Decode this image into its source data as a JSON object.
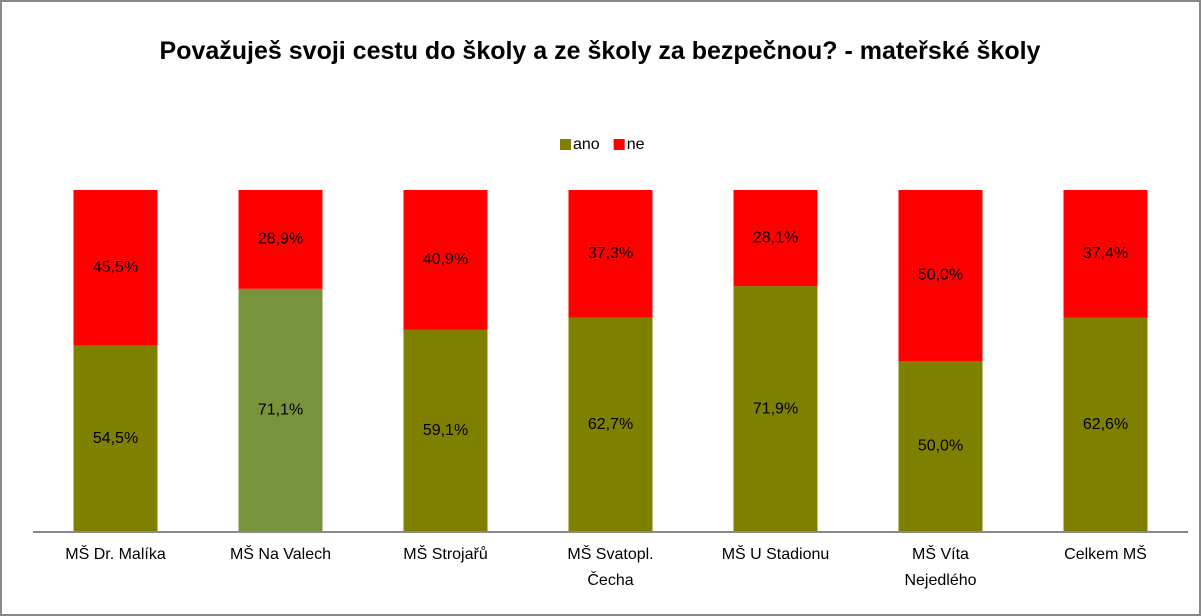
{
  "chart_data": {
    "type": "stacked_bar",
    "title": "Považuješ svoji cestu do školy a ze školy za bezpečnou? - mateřské školy",
    "categories": [
      "MŠ Dr. Malíka",
      "MŠ Na Valech",
      "MŠ Strojařů",
      "MŠ Svatopl. Čecha",
      "MŠ U Stadionu",
      "MŠ Víta Nejedlého",
      "Celkem MŠ"
    ],
    "series": [
      {
        "name": "ano",
        "color": "#808000",
        "point_colors": [
          "#808000",
          "#77933c",
          "#808000",
          "#808000",
          "#808000",
          "#808000",
          "#808000"
        ],
        "values": [
          54.5,
          71.1,
          59.1,
          62.7,
          71.9,
          50.0,
          62.6
        ],
        "value_labels": [
          "54,5%",
          "71,1%",
          "59,1%",
          "62,7%",
          "71,9%",
          "50,0%",
          "62,6%"
        ]
      },
      {
        "name": "ne",
        "color": "#ff0000",
        "values": [
          45.5,
          28.9,
          40.9,
          37.3,
          28.1,
          50.0,
          37.4
        ],
        "value_labels": [
          "45,5%",
          "28,9%",
          "40,9%",
          "37,3%",
          "28,1%",
          "50,0%",
          "37,4%"
        ]
      }
    ],
    "ylim": [
      0,
      100
    ],
    "legend": "top"
  }
}
